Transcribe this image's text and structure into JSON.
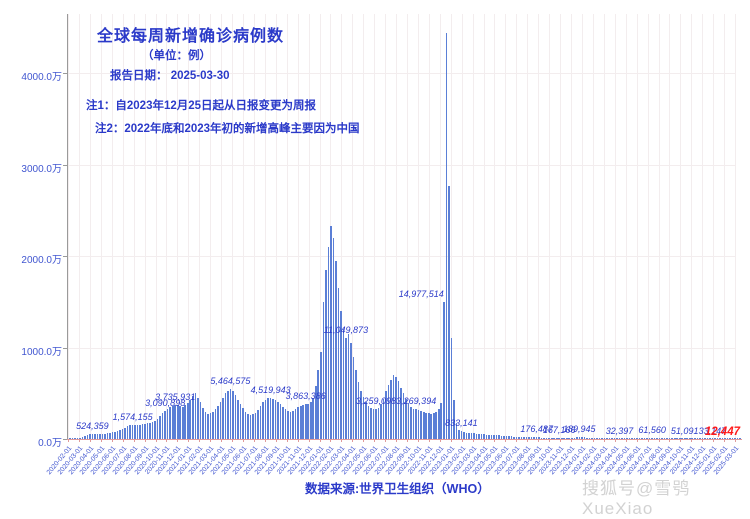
{
  "header": {
    "title": "全球每周新增确诊病例数",
    "subtitle": "（单位：例）",
    "report_date_label": "报告日期：",
    "report_date": "2025-03-30",
    "note1": "注1：自2023年12月25日起从日报变更为周报",
    "note2": "注2：2022年底和2023年初的新增高峰主要因为中国"
  },
  "footer": {
    "source": "数据来源:世界卫生组织（WHO）",
    "watermark": "搜狐号@雪鸮XueXiao"
  },
  "colors": {
    "bar": "#5b7fd6",
    "blue_text": "#2b3ac9",
    "tick_blue": "#4156d0",
    "red": "#ff1a1a",
    "grid": "#f3edee",
    "axis_x": "#e09a9a",
    "axis_y": "#9a9a9a",
    "watermark": "#c4c4c4"
  },
  "chart_data": {
    "type": "bar",
    "title": "全球每周新增确诊病例数",
    "unit": "例",
    "xlabel": "",
    "ylabel": "",
    "ylim": [
      0,
      45000000
    ],
    "grid": true,
    "x_interval": "weekly",
    "x_range": [
      "2020-02-01",
      "2025-03-24"
    ],
    "y_ticks": [
      "0.0万",
      "1000.0万",
      "2000.0万",
      "3000.0万",
      "4000.0万"
    ],
    "x_ticks": [
      "2020-02-01",
      "2020-03-01",
      "2020-04-01",
      "2020-05-01",
      "2020-06-01",
      "2020-07-01",
      "2020-08-01",
      "2020-09-01",
      "2020-10-01",
      "2020-11-01",
      "2020-12-01",
      "2021-01-01",
      "2021-02-01",
      "2021-03-01",
      "2021-04-01",
      "2021-05-01",
      "2021-06-01",
      "2021-07-01",
      "2021-08-01",
      "2021-09-01",
      "2021-10-01",
      "2021-11-01",
      "2021-12-01",
      "2022-01-01",
      "2022-02-01",
      "2022-03-01",
      "2022-04-01",
      "2022-05-01",
      "2022-06-01",
      "2022-07-01",
      "2022-08-01",
      "2022-09-01",
      "2022-10-01",
      "2022-11-01",
      "2022-12-01",
      "2023-01-01",
      "2023-02-01",
      "2023-03-01",
      "2023-04-01",
      "2023-05-01",
      "2023-06-01",
      "2023-07-01",
      "2023-08-01",
      "2023-09-01",
      "2023-10-01",
      "2023-11-01",
      "2023-12-01",
      "2024-01-01",
      "2024-02-01",
      "2024-03-01",
      "2024-04-01",
      "2024-05-01",
      "2024-06-01",
      "2024-07-01",
      "2024-08-01",
      "2024-09-01",
      "2024-10-01",
      "2024-11-01",
      "2024-12-01",
      "2025-01-01",
      "2025-02-01",
      "2025-03-01"
    ],
    "values": [
      50000,
      55000,
      60000,
      80000,
      120000,
      200000,
      310000,
      420000,
      500000,
      524359,
      510000,
      500000,
      520000,
      550000,
      600000,
      650000,
      700000,
      750000,
      800000,
      900000,
      1000000,
      1100000,
      1250000,
      1400000,
      1500000,
      1574155,
      1550000,
      1500000,
      1550000,
      1600000,
      1650000,
      1700000,
      1800000,
      1900000,
      2000000,
      2200000,
      2500000,
      2800000,
      3090898,
      3300000,
      3500000,
      3600000,
      3735931,
      3700000,
      3600000,
      3500000,
      3700000,
      3900000,
      4300000,
      4700000,
      5000000,
      4500000,
      4000000,
      3400000,
      3000000,
      2700000,
      2800000,
      3000000,
      3300000,
      3600000,
      4000000,
      4500000,
      5000000,
      5300000,
      5464575,
      5200000,
      4800000,
      4300000,
      3800000,
      3400000,
      3000000,
      2700000,
      2600000,
      2700000,
      2900000,
      3200000,
      3600000,
      4000000,
      4300000,
      4450000,
      4519943,
      4400000,
      4300000,
      4100000,
      3800000,
      3500000,
      3300000,
      3100000,
      3000000,
      3100000,
      3300000,
      3500000,
      3600000,
      3700000,
      3863386,
      3800000,
      4000000,
      4500000,
      5800000,
      7500000,
      9500000,
      15000000,
      18500000,
      21000000,
      23300000,
      22000000,
      19500000,
      16500000,
      14000000,
      12000000,
      11049873,
      11500000,
      10500000,
      9000000,
      7500000,
      6200000,
      5200000,
      4600000,
      4000000,
      3600000,
      3400000,
      3300000,
      3259098,
      3400000,
      3800000,
      4400000,
      5200000,
      5900000,
      6500000,
      7000000,
      6800000,
      6300000,
      5600000,
      5000000,
      4400000,
      3900000,
      3500000,
      3300000,
      3269394,
      3200000,
      3100000,
      3000000,
      2900000,
      2800000,
      2700000,
      2800000,
      3000000,
      3300000,
      3900000,
      14977514,
      44400000,
      27700000,
      11000000,
      4300000,
      1800000,
      1000000,
      833141,
      750000,
      700000,
      680000,
      650000,
      620000,
      600000,
      580000,
      550000,
      500000,
      470000,
      450000,
      440000,
      430000,
      420000,
      400000,
      380000,
      350000,
      320000,
      300000,
      280000,
      260000,
      240000,
      220000,
      210000,
      200000,
      190000,
      185000,
      180000,
      178000,
      176487,
      170000,
      165000,
      160000,
      155000,
      150000,
      152000,
      158000,
      162000,
      167166,
      160000,
      150000,
      145000,
      140000,
      150000,
      165000,
      180000,
      189945,
      185000,
      170000,
      150000,
      120000,
      100000,
      90000,
      80000,
      70000,
      60000,
      52000,
      46000,
      40000,
      36000,
      34000,
      33000,
      32397,
      31000,
      30500,
      30000,
      31000,
      33000,
      36000,
      40000,
      45000,
      50000,
      55000,
      58000,
      60000,
      61560,
      60000,
      58000,
      56000,
      54000,
      52000,
      50000,
      48000,
      46000,
      45000,
      46000,
      48000,
      50000,
      51091,
      50000,
      48000,
      45000,
      42000,
      40000,
      38000,
      36000,
      35000,
      34000,
      33500,
      33147,
      32000,
      30000,
      28000,
      26000,
      24000,
      22000,
      20000,
      18000,
      16000,
      14000,
      12447
    ],
    "annotations": [
      {
        "text": "524,359",
        "i": 9,
        "align": "center",
        "color": "blue"
      },
      {
        "text": "1,574,155",
        "i": 25,
        "align": "center",
        "color": "blue"
      },
      {
        "text": "3,090,898",
        "i": 38,
        "align": "center",
        "color": "blue"
      },
      {
        "text": "3,735,931",
        "i": 42,
        "align": "center",
        "color": "blue"
      },
      {
        "text": "5,464,575",
        "i": 64,
        "align": "center",
        "color": "blue"
      },
      {
        "text": "4,519,943",
        "i": 80,
        "align": "center",
        "color": "blue"
      },
      {
        "text": "3,863,386",
        "i": 94,
        "align": "center",
        "color": "blue"
      },
      {
        "text": "11,049,873",
        "i": 110,
        "align": "center",
        "color": "blue"
      },
      {
        "text": "3,259,098",
        "i": 122,
        "align": "center",
        "color": "blue"
      },
      {
        "text": "3,269,394",
        "i": 138,
        "align": "center",
        "color": "blue"
      },
      {
        "text": "14,977,514",
        "i": 149,
        "align": "right",
        "color": "blue"
      },
      {
        "text": "833,141",
        "i": 156,
        "align": "center",
        "color": "blue"
      },
      {
        "text": "176,487",
        "i": 186,
        "align": "center",
        "color": "blue"
      },
      {
        "text": "167,166",
        "i": 195,
        "align": "center",
        "color": "blue"
      },
      {
        "text": "189,945",
        "i": 203,
        "align": "center",
        "color": "blue"
      },
      {
        "text": "32,397",
        "i": 219,
        "align": "center",
        "color": "blue"
      },
      {
        "text": "61,560",
        "i": 232,
        "align": "center",
        "color": "blue"
      },
      {
        "text": "51,091",
        "i": 245,
        "align": "center",
        "color": "blue"
      },
      {
        "text": "33,147",
        "i": 256,
        "align": "center",
        "color": "blue"
      },
      {
        "text": "12,447",
        "i": 267,
        "align": "right",
        "color": "red"
      }
    ]
  }
}
